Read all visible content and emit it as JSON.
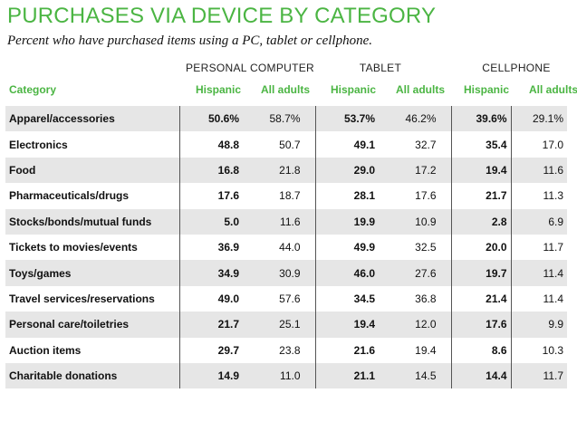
{
  "chart_data": {
    "type": "table",
    "title": "PURCHASES VIA DEVICE BY CATEGORY",
    "subtitle": "Percent who have purchased items using a PC, tablet or cellphone.",
    "column_groups": [
      "PERSONAL COMPUTER",
      "TABLET",
      "CELLPHONE"
    ],
    "columns": [
      "Category",
      "Hispanic",
      "All adults",
      "Hispanic",
      "All adults",
      "Hispanic",
      "All adults"
    ],
    "rows": [
      [
        "Apparel/accessories",
        "50.6%",
        "58.7%",
        "53.7%",
        "46.2%",
        "39.6%",
        "29.1%"
      ],
      [
        "Electronics",
        "48.8",
        "50.7",
        "49.1",
        "32.7",
        "35.4",
        "17.0"
      ],
      [
        "Food",
        "16.8",
        "21.8",
        "29.0",
        "17.2",
        "19.4",
        "11.6"
      ],
      [
        "Pharmaceuticals/drugs",
        "17.6",
        "18.7",
        "28.1",
        "17.6",
        "21.7",
        "11.3"
      ],
      [
        "Stocks/bonds/mutual funds",
        "5.0",
        "11.6",
        "19.9",
        "10.9",
        "2.8",
        "6.9"
      ],
      [
        "Tickets to movies/events",
        "36.9",
        "44.0",
        "49.9",
        "32.5",
        "20.0",
        "11.7"
      ],
      [
        "Toys/games",
        "34.9",
        "30.9",
        "46.0",
        "27.6",
        "19.7",
        "11.4"
      ],
      [
        "Travel services/reservations",
        "49.0",
        "57.6",
        "34.5",
        "36.8",
        "21.4",
        "11.4"
      ],
      [
        "Personal care/toiletries",
        "21.7",
        "25.1",
        "19.4",
        "12.0",
        "17.6",
        "9.9"
      ],
      [
        "Auction items",
        "29.7",
        "23.8",
        "21.6",
        "19.4",
        "8.6",
        "10.3"
      ],
      [
        "Charitable donations",
        "14.9",
        "11.0",
        "21.1",
        "14.5",
        "14.4",
        "11.7"
      ]
    ]
  },
  "colors": {
    "accent_green": "#4bb543",
    "row_shade": "#e6e6e6"
  }
}
